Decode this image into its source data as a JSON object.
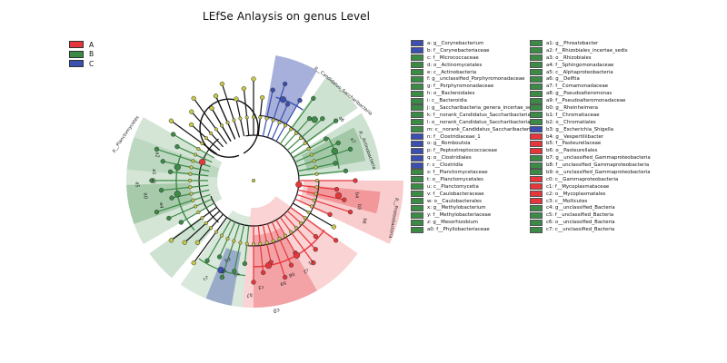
{
  "title": "LEfSe Anlaysis on genus Level",
  "colors": {
    "A": "#e6363b",
    "B": "#3b8a46",
    "C": "#3b4fb0",
    "node": "#c6c84a",
    "edge": "#111111"
  },
  "groups": [
    {
      "name": "A",
      "color": "#e6363b"
    },
    {
      "name": "B",
      "color": "#3b8a46"
    },
    {
      "name": "C",
      "color": "#3b4fb0"
    }
  ],
  "clade_labels": [
    {
      "text": "p__Planctomycetes"
    },
    {
      "text": "p__Candidatus_Saccharibacteria"
    },
    {
      "text": "p__Actinobacteria"
    },
    {
      "text": "p__Proteobacteria"
    },
    {
      "text": "a0"
    },
    {
      "text": "a1"
    },
    {
      "text": "a2"
    },
    {
      "text": "a3"
    },
    {
      "text": "a4"
    },
    {
      "text": "a5"
    },
    {
      "text": "a6"
    },
    {
      "text": "a7"
    },
    {
      "text": "c5"
    },
    {
      "text": "c6"
    },
    {
      "text": "c7"
    },
    {
      "text": "b4"
    },
    {
      "text": "b5"
    },
    {
      "text": "b6"
    },
    {
      "text": "b8"
    },
    {
      "text": "b9"
    },
    {
      "text": "c0"
    },
    {
      "text": "c1"
    },
    {
      "text": "c2"
    },
    {
      "text": "c3"
    },
    {
      "text": "b3"
    },
    {
      "text": "b7"
    }
  ],
  "key_col1": [
    {
      "label": "a: g__Corynebacterium",
      "group": "C"
    },
    {
      "label": "b: f__Corynebacteriaceae",
      "group": "C"
    },
    {
      "label": "c: f__Micrococcaceae",
      "group": "B"
    },
    {
      "label": "d: o__Actinomycetales",
      "group": "B"
    },
    {
      "label": "e: c__Actinobacteria",
      "group": "B"
    },
    {
      "label": "f: g__unclassified_Porphyromonadaceae",
      "group": "B"
    },
    {
      "label": "g: f__Porphyromonadaceae",
      "group": "B"
    },
    {
      "label": "h: o__Bacteroidales",
      "group": "B"
    },
    {
      "label": "i: c__Bacteroidia",
      "group": "B"
    },
    {
      "label": "j: g__Saccharibacteria_genera_incertae_sedis",
      "group": "B"
    },
    {
      "label": "k: f__norank_Candidatus_Saccharibacteria",
      "group": "B"
    },
    {
      "label": "l: o__norank_Candidatus_Saccharibacteria",
      "group": "B"
    },
    {
      "label": "m: c__norank_Candidatus_Saccharibacteria",
      "group": "B"
    },
    {
      "label": "n: f__Clostridiaceae_1",
      "group": "C"
    },
    {
      "label": "o: g__Romboutsia",
      "group": "C"
    },
    {
      "label": "p: f__Peptostreptococcaceae",
      "group": "C"
    },
    {
      "label": "q: o__Clostridiales",
      "group": "C"
    },
    {
      "label": "r: c__Clostridia",
      "group": "C"
    },
    {
      "label": "s: f__Planctomycetaceae",
      "group": "B"
    },
    {
      "label": "t: o__Planctomycetales",
      "group": "B"
    },
    {
      "label": "u: c__Planctomycetia",
      "group": "B"
    },
    {
      "label": "v: f__Caulobacteraceae",
      "group": "B"
    },
    {
      "label": "w: o__Caulobacterales",
      "group": "B"
    },
    {
      "label": "x: g__Methylobacterium",
      "group": "B"
    },
    {
      "label": "y: f__Methylobacteriaceae",
      "group": "B"
    },
    {
      "label": "z: g__Mesorhizobium",
      "group": "B"
    },
    {
      "label": "a0: f__Phyllobacteriaceae",
      "group": "B"
    }
  ],
  "key_col2": [
    {
      "label": "a1: g__Phreatobacter",
      "group": "B"
    },
    {
      "label": "a2: f__Rhizobiales_incertae_sedis",
      "group": "B"
    },
    {
      "label": "a3: o__Rhizobiales",
      "group": "B"
    },
    {
      "label": "a4: f__Sphingomonadaceae",
      "group": "B"
    },
    {
      "label": "a5: c__Alphaproteobacteria",
      "group": "B"
    },
    {
      "label": "a6: g__Delftia",
      "group": "B"
    },
    {
      "label": "a7: f__Comamonadaceae",
      "group": "B"
    },
    {
      "label": "a8: g__Pseudoalteromonas",
      "group": "B"
    },
    {
      "label": "a9: f__Pseudoalteromonadaceae",
      "group": "B"
    },
    {
      "label": "b0: g__Rheinheimera",
      "group": "B"
    },
    {
      "label": "b1: f__Chromatiaceae",
      "group": "B"
    },
    {
      "label": "b2: o__Chromatiales",
      "group": "B"
    },
    {
      "label": "b3: g__Escherichia_Shigella",
      "group": "C"
    },
    {
      "label": "b4: g__Vespertiliibacter",
      "group": "A"
    },
    {
      "label": "b5: f__Pasteurellaceae",
      "group": "A"
    },
    {
      "label": "b6: o__Pasteurellales",
      "group": "A"
    },
    {
      "label": "b7: g__unclassified_Gammaproteobacteria",
      "group": "B"
    },
    {
      "label": "b8: f__unclassified_Gammaproteobacteria",
      "group": "B"
    },
    {
      "label": "b9: o__unclassified_Gammaproteobacteria",
      "group": "B"
    },
    {
      "label": "c0: c__Gammaproteobacteria",
      "group": "A"
    },
    {
      "label": "c1: f__Mycoplasmataceae",
      "group": "A"
    },
    {
      "label": "c2: o__Mycoplasmatales",
      "group": "A"
    },
    {
      "label": "c3: c__Mollicutes",
      "group": "A"
    },
    {
      "label": "c4: g__unclassified_Bacteria",
      "group": "B"
    },
    {
      "label": "c5: f__unclassified_Bacteria",
      "group": "B"
    },
    {
      "label": "c6: o__unclassified_Bacteria",
      "group": "B"
    },
    {
      "label": "c7: c__unclassified_Bacteria",
      "group": "B"
    }
  ]
}
